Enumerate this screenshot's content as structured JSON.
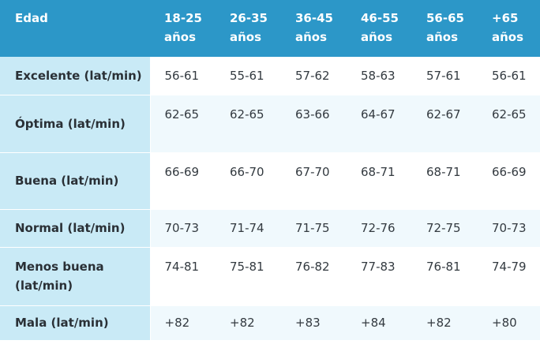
{
  "header": {
    "first": "Edad",
    "ages": [
      "18-25 años",
      "26-35 años",
      "36-45 años",
      "46-55 años",
      "56-65 años",
      "+65 años"
    ]
  },
  "rows": [
    {
      "label": "Excelente (lat/min)",
      "values": [
        "56-61",
        "55-61",
        "57-62",
        "58-63",
        "57-61",
        "56-61"
      ]
    },
    {
      "label": "Óptima (lat/min)",
      "values": [
        "62-65",
        "62-65",
        "63-66",
        "64-67",
        "62-67",
        "62-65"
      ]
    },
    {
      "label": "Buena (lat/min)",
      "values": [
        "66-69",
        "66-70",
        "67-70",
        "68-71",
        "68-71",
        "66-69"
      ]
    },
    {
      "label": "Normal (lat/min)",
      "values": [
        "70-73",
        "71-74",
        "71-75",
        "72-76",
        "72-75",
        "70-73"
      ]
    },
    {
      "label": "Menos buena (lat/min)",
      "values": [
        "74-81",
        "75-81",
        "76-82",
        "77-83",
        "76-81",
        "74-79"
      ]
    },
    {
      "label": "Mala (lat/min)",
      "values": [
        "+82",
        "+82",
        "+83",
        "+84",
        "+82",
        "+80"
      ]
    }
  ],
  "colors": {
    "header_bg": "#2c97c8",
    "label_bg": "#c9eaf6",
    "alt_row_bg": "#f0f9fd"
  }
}
